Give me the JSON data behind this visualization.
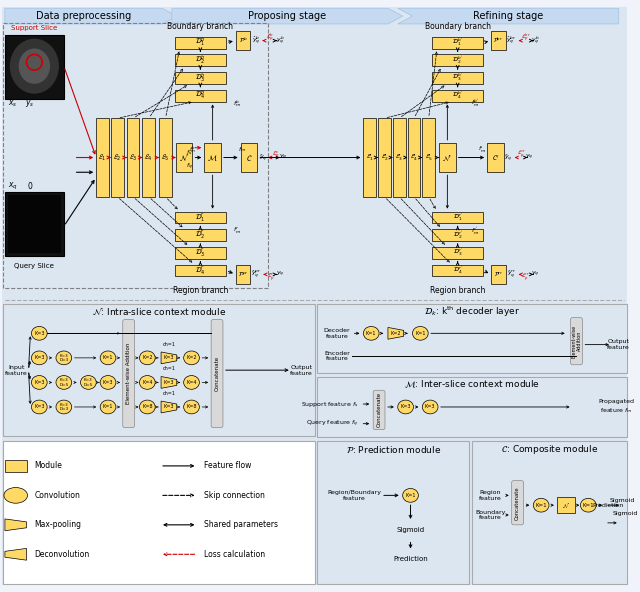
{
  "bg_color": "#f0f4fa",
  "top_bg": "#dce6f1",
  "bot_bg": "#dce6f1",
  "mod_color": "#ffd966",
  "conv_color": "#ffd966",
  "gray_color": "#d9d9d9",
  "white_color": "#ffffff",
  "red_color": "#cc0000",
  "black": "#000000",
  "stage_labels": [
    "Data preprocessing",
    "Proposing stage",
    "Refining stage"
  ],
  "chevron_color": "#c5d9f1",
  "chevron_ec": "#9dc3e6"
}
